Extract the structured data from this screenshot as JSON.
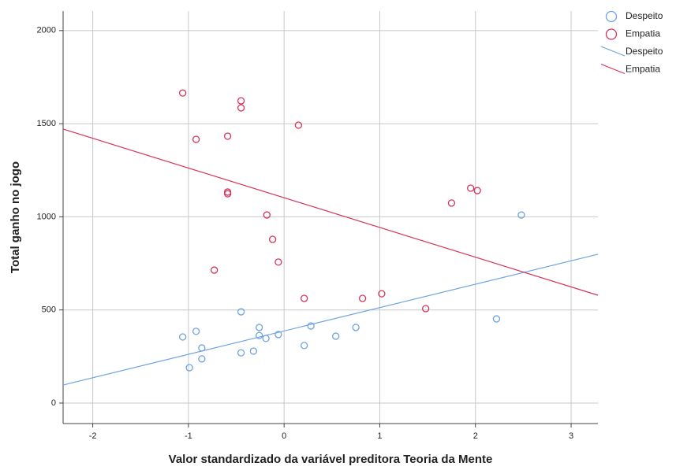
{
  "chart_data": {
    "type": "scatter",
    "xlabel": "Valor standardizado da variável preditora Teoria da Mente",
    "ylabel": "Total ganho no jogo",
    "xlim": [
      -2.31,
      3.28
    ],
    "ylim": [
      -110,
      2105
    ],
    "xticks": [
      -2,
      -1,
      0,
      1,
      2,
      3
    ],
    "yticks": [
      0,
      500,
      1000,
      1500,
      2000
    ],
    "grid": true,
    "legend": "top-right",
    "series": [
      {
        "name": "Despeito",
        "color": "#6fa3e0",
        "marker": "circle",
        "x": [
          -1.06,
          -0.92,
          -0.99,
          -0.86,
          -0.86,
          -0.45,
          -0.45,
          -0.32,
          -0.26,
          -0.26,
          -0.19,
          -0.06,
          0.21,
          0.28,
          0.54,
          0.75,
          2.22,
          2.48
        ],
        "values": [
          355,
          385,
          190,
          296,
          237,
          490,
          270,
          279,
          406,
          363,
          347,
          368,
          309,
          414,
          359,
          406,
          452,
          1010
        ]
      },
      {
        "name": "Empatia",
        "color": "#d6345a",
        "marker": "circle",
        "x": [
          -1.06,
          -0.92,
          -0.59,
          -0.59,
          -0.59,
          -0.73,
          -0.45,
          -0.45,
          -0.18,
          -0.12,
          -0.06,
          0.15,
          0.21,
          0.82,
          1.02,
          1.48,
          1.75,
          1.95,
          2.02
        ],
        "values": [
          1665,
          1416,
          1433,
          1133,
          1124,
          714,
          1623,
          1585,
          1010,
          879,
          757,
          1492,
          562,
          562,
          587,
          507,
          1074,
          1154,
          1141
        ]
      },
      {
        "name": "Despeito",
        "color": "#6fa3e0",
        "marker": "line",
        "x": [
          -2.31,
          3.28
        ],
        "values": [
          97,
          799
        ]
      },
      {
        "name": "Empatia",
        "color": "#d6345a",
        "marker": "line",
        "x": [
          -2.31,
          3.28
        ],
        "values": [
          1471,
          579
        ]
      }
    ]
  }
}
